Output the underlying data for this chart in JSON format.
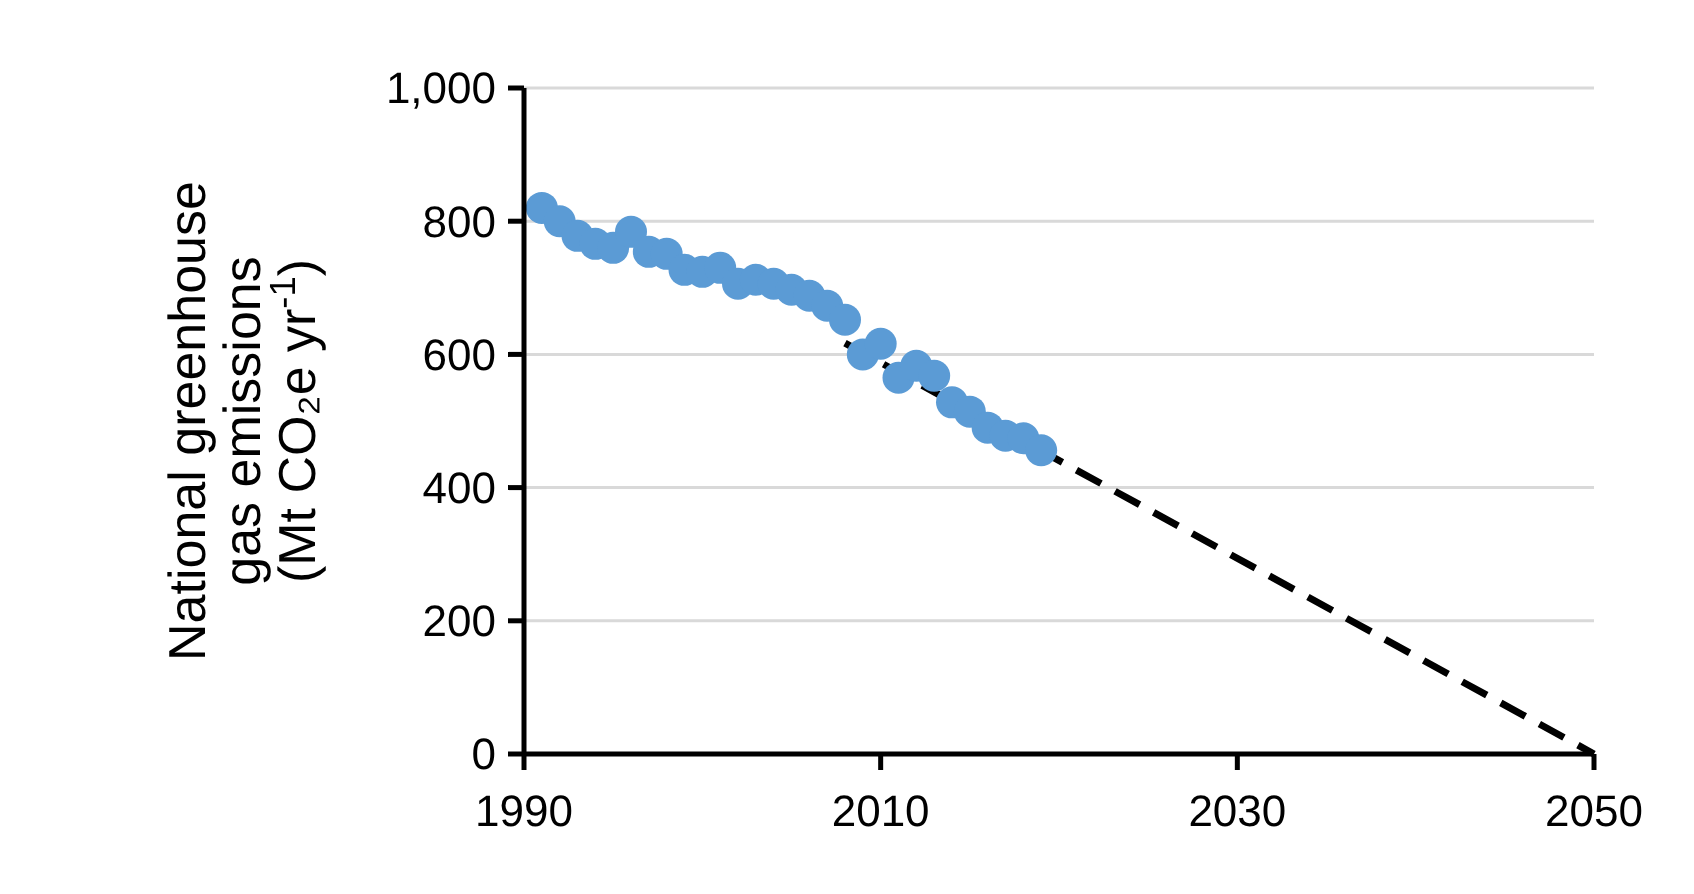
{
  "chart_data": {
    "type": "scatter",
    "ylabel": "National greenhouse gas emissions (Mt CO₂e yr$^{-1}$)",
    "xlim": [
      1990,
      2050
    ],
    "xticks": [
      1990,
      2010,
      2030,
      2050
    ],
    "ylim": [
      0,
      1000
    ],
    "yticks": [
      0,
      200,
      400,
      600,
      800,
      {
        "value": 1000,
        "label": "1,000"
      }
    ],
    "grid": "y",
    "marker": "circle",
    "series": [
      {
        "color": "#5b9bd5",
        "x": [
          1991,
          1992,
          1993,
          1994,
          1995,
          1996,
          1997,
          1998,
          1999,
          2000,
          2001,
          2002,
          2003,
          2004,
          2005,
          2006,
          2007,
          2008,
          2009,
          2010,
          2011,
          2012,
          2013,
          2014,
          2015,
          2016,
          2017,
          2018,
          2019
        ],
        "values": [
          820,
          800,
          778,
          766,
          760,
          784,
          754,
          751,
          727,
          724,
          730,
          706,
          712,
          706,
          697,
          688,
          673,
          652,
          600,
          616,
          565,
          583,
          568,
          528,
          514,
          490,
          478,
          474,
          456
        ]
      },
      {
        "type": "line",
        "color": "#000000",
        "line_style": "dashed",
        "marker": "none",
        "x": [
          2008,
          2050
        ],
        "values": [
          617,
          0
        ]
      }
    ]
  }
}
